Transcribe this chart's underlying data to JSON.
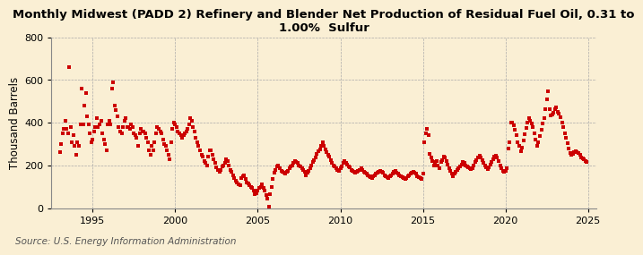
{
  "title": "Monthly Midwest (PADD 2) Refinery and Blender Net Production of Residual Fuel Oil, 0.31 to\n1.00%  Sulfur",
  "ylabel": "Thousand Barrels",
  "source": "Source: U.S. Energy Information Administration",
  "background_color": "#faefd4",
  "marker_color": "#cc0000",
  "marker": "s",
  "marker_size": 3.5,
  "ylim": [
    0,
    800
  ],
  "yticks": [
    0,
    200,
    400,
    600,
    800
  ],
  "xmin": 1992.5,
  "xmax": 2025.5,
  "xticks": [
    1995,
    2000,
    2005,
    2010,
    2015,
    2020,
    2025
  ],
  "grid_color": "#aaaaaa",
  "grid_style": "--",
  "title_fontsize": 9.5,
  "label_fontsize": 8.5,
  "tick_fontsize": 8,
  "source_fontsize": 7.5,
  "data_x": [
    1993.0,
    1993.083,
    1993.167,
    1993.25,
    1993.333,
    1993.417,
    1993.5,
    1993.583,
    1993.667,
    1993.75,
    1993.833,
    1993.917,
    1994.0,
    1994.083,
    1994.167,
    1994.25,
    1994.333,
    1994.417,
    1994.5,
    1994.583,
    1994.667,
    1994.75,
    1994.833,
    1994.917,
    1995.0,
    1995.083,
    1995.167,
    1995.25,
    1995.333,
    1995.417,
    1995.5,
    1995.583,
    1995.667,
    1995.75,
    1995.833,
    1995.917,
    1996.0,
    1996.083,
    1996.167,
    1996.25,
    1996.333,
    1996.417,
    1996.5,
    1996.583,
    1996.667,
    1996.75,
    1996.833,
    1996.917,
    1997.0,
    1997.083,
    1997.167,
    1997.25,
    1997.333,
    1997.417,
    1997.5,
    1997.583,
    1997.667,
    1997.75,
    1997.833,
    1997.917,
    1998.0,
    1998.083,
    1998.167,
    1998.25,
    1998.333,
    1998.417,
    1998.5,
    1998.583,
    1998.667,
    1998.75,
    1998.833,
    1998.917,
    1999.0,
    1999.083,
    1999.167,
    1999.25,
    1999.333,
    1999.417,
    1999.5,
    1999.583,
    1999.667,
    1999.75,
    1999.833,
    1999.917,
    2000.0,
    2000.083,
    2000.167,
    2000.25,
    2000.333,
    2000.417,
    2000.5,
    2000.583,
    2000.667,
    2000.75,
    2000.833,
    2000.917,
    2001.0,
    2001.083,
    2001.167,
    2001.25,
    2001.333,
    2001.417,
    2001.5,
    2001.583,
    2001.667,
    2001.75,
    2001.833,
    2001.917,
    2002.0,
    2002.083,
    2002.167,
    2002.25,
    2002.333,
    2002.417,
    2002.5,
    2002.583,
    2002.667,
    2002.75,
    2002.833,
    2002.917,
    2003.0,
    2003.083,
    2003.167,
    2003.25,
    2003.333,
    2003.417,
    2003.5,
    2003.583,
    2003.667,
    2003.75,
    2003.833,
    2003.917,
    2004.0,
    2004.083,
    2004.167,
    2004.25,
    2004.333,
    2004.417,
    2004.5,
    2004.583,
    2004.667,
    2004.75,
    2004.833,
    2004.917,
    2005.0,
    2005.083,
    2005.167,
    2005.25,
    2005.333,
    2005.417,
    2005.5,
    2005.583,
    2005.667,
    2005.75,
    2005.833,
    2005.917,
    2006.0,
    2006.083,
    2006.167,
    2006.25,
    2006.333,
    2006.417,
    2006.5,
    2006.583,
    2006.667,
    2006.75,
    2006.833,
    2006.917,
    2007.0,
    2007.083,
    2007.167,
    2007.25,
    2007.333,
    2007.417,
    2007.5,
    2007.583,
    2007.667,
    2007.75,
    2007.833,
    2007.917,
    2008.0,
    2008.083,
    2008.167,
    2008.25,
    2008.333,
    2008.417,
    2008.5,
    2008.583,
    2008.667,
    2008.75,
    2008.833,
    2008.917,
    2009.0,
    2009.083,
    2009.167,
    2009.25,
    2009.333,
    2009.417,
    2009.5,
    2009.583,
    2009.667,
    2009.75,
    2009.833,
    2009.917,
    2010.0,
    2010.083,
    2010.167,
    2010.25,
    2010.333,
    2010.417,
    2010.5,
    2010.583,
    2010.667,
    2010.75,
    2010.833,
    2010.917,
    2011.0,
    2011.083,
    2011.167,
    2011.25,
    2011.333,
    2011.417,
    2011.5,
    2011.583,
    2011.667,
    2011.75,
    2011.833,
    2011.917,
    2012.0,
    2012.083,
    2012.167,
    2012.25,
    2012.333,
    2012.417,
    2012.5,
    2012.583,
    2012.667,
    2012.75,
    2012.833,
    2012.917,
    2013.0,
    2013.083,
    2013.167,
    2013.25,
    2013.333,
    2013.417,
    2013.5,
    2013.583,
    2013.667,
    2013.75,
    2013.833,
    2013.917,
    2014.0,
    2014.083,
    2014.167,
    2014.25,
    2014.333,
    2014.417,
    2014.5,
    2014.583,
    2014.667,
    2014.75,
    2014.833,
    2014.917,
    2015.0,
    2015.083,
    2015.167,
    2015.25,
    2015.333,
    2015.417,
    2015.5,
    2015.583,
    2015.667,
    2015.75,
    2015.833,
    2015.917,
    2016.0,
    2016.083,
    2016.167,
    2016.25,
    2016.333,
    2016.417,
    2016.5,
    2016.583,
    2016.667,
    2016.75,
    2016.833,
    2016.917,
    2017.0,
    2017.083,
    2017.167,
    2017.25,
    2017.333,
    2017.417,
    2017.5,
    2017.583,
    2017.667,
    2017.75,
    2017.833,
    2017.917,
    2018.0,
    2018.083,
    2018.167,
    2018.25,
    2018.333,
    2018.417,
    2018.5,
    2018.583,
    2018.667,
    2018.75,
    2018.833,
    2018.917,
    2019.0,
    2019.083,
    2019.167,
    2019.25,
    2019.333,
    2019.417,
    2019.5,
    2019.583,
    2019.667,
    2019.75,
    2019.833,
    2019.917,
    2020.0,
    2020.083,
    2020.167,
    2020.25,
    2020.333,
    2020.417,
    2020.5,
    2020.583,
    2020.667,
    2020.75,
    2020.833,
    2020.917,
    2021.0,
    2021.083,
    2021.167,
    2021.25,
    2021.333,
    2021.417,
    2021.5,
    2021.583,
    2021.667,
    2021.75,
    2021.833,
    2021.917,
    2022.0,
    2022.083,
    2022.167,
    2022.25,
    2022.333,
    2022.417,
    2022.5,
    2022.583,
    2022.667,
    2022.75,
    2022.833,
    2022.917,
    2023.0,
    2023.083,
    2023.167,
    2023.25,
    2023.333,
    2023.417,
    2023.5,
    2023.583,
    2023.667,
    2023.75,
    2023.833,
    2023.917,
    2024.0,
    2024.083,
    2024.167,
    2024.25,
    2024.333,
    2024.417,
    2024.5,
    2024.583,
    2024.667,
    2024.75,
    2024.833,
    2024.917
  ],
  "data_y": [
    260,
    300,
    350,
    370,
    410,
    370,
    350,
    660,
    380,
    310,
    340,
    290,
    250,
    310,
    290,
    390,
    560,
    390,
    480,
    540,
    430,
    390,
    350,
    310,
    320,
    360,
    380,
    420,
    380,
    390,
    410,
    350,
    320,
    300,
    270,
    390,
    410,
    390,
    560,
    590,
    480,
    460,
    430,
    380,
    360,
    350,
    380,
    410,
    420,
    380,
    380,
    370,
    390,
    380,
    350,
    340,
    330,
    290,
    350,
    370,
    360,
    360,
    350,
    330,
    310,
    270,
    250,
    290,
    270,
    310,
    350,
    380,
    370,
    360,
    350,
    320,
    300,
    290,
    270,
    250,
    230,
    310,
    370,
    400,
    390,
    380,
    360,
    350,
    340,
    330,
    340,
    350,
    360,
    370,
    390,
    420,
    410,
    380,
    360,
    330,
    310,
    290,
    270,
    250,
    240,
    220,
    210,
    200,
    240,
    270,
    270,
    250,
    230,
    210,
    190,
    180,
    170,
    180,
    195,
    200,
    210,
    230,
    220,
    200,
    180,
    170,
    155,
    140,
    130,
    120,
    110,
    105,
    140,
    150,
    155,
    135,
    120,
    115,
    105,
    100,
    95,
    80,
    65,
    70,
    80,
    95,
    100,
    110,
    95,
    80,
    60,
    45,
    5,
    65,
    100,
    135,
    165,
    180,
    195,
    200,
    185,
    175,
    170,
    165,
    160,
    170,
    175,
    185,
    195,
    200,
    210,
    220,
    215,
    210,
    200,
    195,
    185,
    180,
    170,
    155,
    165,
    175,
    185,
    200,
    215,
    225,
    235,
    255,
    265,
    275,
    290,
    310,
    290,
    275,
    260,
    250,
    240,
    225,
    210,
    200,
    195,
    185,
    180,
    175,
    185,
    195,
    210,
    220,
    210,
    205,
    195,
    190,
    180,
    175,
    170,
    165,
    170,
    175,
    180,
    185,
    180,
    170,
    165,
    160,
    155,
    150,
    145,
    140,
    150,
    155,
    160,
    165,
    170,
    175,
    170,
    165,
    155,
    150,
    145,
    140,
    150,
    155,
    160,
    170,
    175,
    165,
    160,
    155,
    150,
    145,
    140,
    135,
    140,
    148,
    155,
    160,
    165,
    170,
    165,
    160,
    150,
    145,
    140,
    138,
    160,
    310,
    350,
    370,
    340,
    255,
    235,
    220,
    200,
    215,
    220,
    200,
    185,
    215,
    225,
    240,
    235,
    220,
    205,
    185,
    175,
    160,
    150,
    160,
    168,
    178,
    185,
    195,
    205,
    215,
    210,
    200,
    195,
    192,
    188,
    182,
    188,
    198,
    215,
    225,
    235,
    245,
    235,
    225,
    212,
    200,
    192,
    182,
    192,
    205,
    215,
    230,
    240,
    245,
    235,
    220,
    200,
    185,
    175,
    168,
    175,
    185,
    280,
    310,
    400,
    400,
    388,
    368,
    340,
    310,
    292,
    268,
    285,
    315,
    345,
    375,
    400,
    420,
    410,
    395,
    378,
    350,
    320,
    290,
    308,
    338,
    365,
    395,
    420,
    465,
    510,
    545,
    462,
    432,
    440,
    448,
    462,
    472,
    450,
    442,
    425,
    402,
    378,
    352,
    330,
    302,
    278,
    258,
    248,
    252,
    262,
    268,
    262,
    258,
    248,
    238,
    232,
    228,
    222,
    218
  ]
}
